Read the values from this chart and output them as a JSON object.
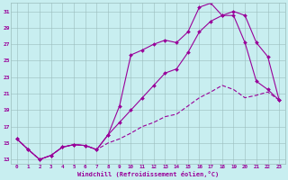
{
  "xlabel": "Windchill (Refroidissement éolien,°C)",
  "bg_color": "#c8eef0",
  "line_color": "#990099",
  "xlim": [
    -0.5,
    23.5
  ],
  "ylim": [
    12.5,
    32
  ],
  "yticks": [
    13,
    15,
    17,
    19,
    21,
    23,
    25,
    27,
    29,
    31
  ],
  "xticks": [
    0,
    1,
    2,
    3,
    4,
    5,
    6,
    7,
    8,
    9,
    10,
    11,
    12,
    13,
    14,
    15,
    16,
    17,
    18,
    19,
    20,
    21,
    22,
    23
  ],
  "line1_x": [
    0,
    1,
    2,
    3,
    4,
    5,
    6,
    7,
    8,
    9,
    10,
    11,
    12,
    13,
    14,
    15,
    16,
    17,
    18,
    19,
    20,
    21,
    22,
    23
  ],
  "line1_y": [
    15.5,
    14.2,
    13.0,
    13.5,
    14.5,
    14.8,
    14.7,
    14.2,
    16.0,
    19.5,
    25.7,
    26.3,
    27.0,
    27.5,
    27.2,
    28.5,
    31.5,
    32.0,
    30.5,
    30.5,
    27.2,
    22.5,
    21.5,
    20.2
  ],
  "line2_x": [
    0,
    1,
    2,
    3,
    4,
    5,
    6,
    7,
    8,
    9,
    10,
    11,
    12,
    13,
    14,
    15,
    16,
    17,
    18,
    19,
    20,
    21,
    22,
    23
  ],
  "line2_y": [
    15.5,
    14.2,
    13.0,
    13.5,
    14.5,
    14.8,
    14.7,
    14.2,
    15.0,
    15.5,
    16.2,
    17.0,
    17.5,
    18.2,
    18.5,
    19.5,
    20.5,
    21.2,
    22.0,
    21.5,
    20.5,
    20.8,
    21.2,
    20.2
  ],
  "line3_x": [
    0,
    1,
    2,
    3,
    4,
    5,
    6,
    7,
    8,
    9,
    10,
    11,
    12,
    13,
    14,
    15,
    16,
    17,
    18,
    19,
    20,
    21,
    22,
    23
  ],
  "line3_y": [
    15.5,
    14.2,
    13.0,
    13.5,
    14.5,
    14.8,
    14.7,
    14.2,
    16.0,
    17.5,
    19.0,
    20.5,
    22.0,
    23.5,
    24.0,
    26.0,
    28.5,
    29.8,
    30.5,
    31.0,
    30.5,
    27.2,
    25.5,
    20.2
  ]
}
